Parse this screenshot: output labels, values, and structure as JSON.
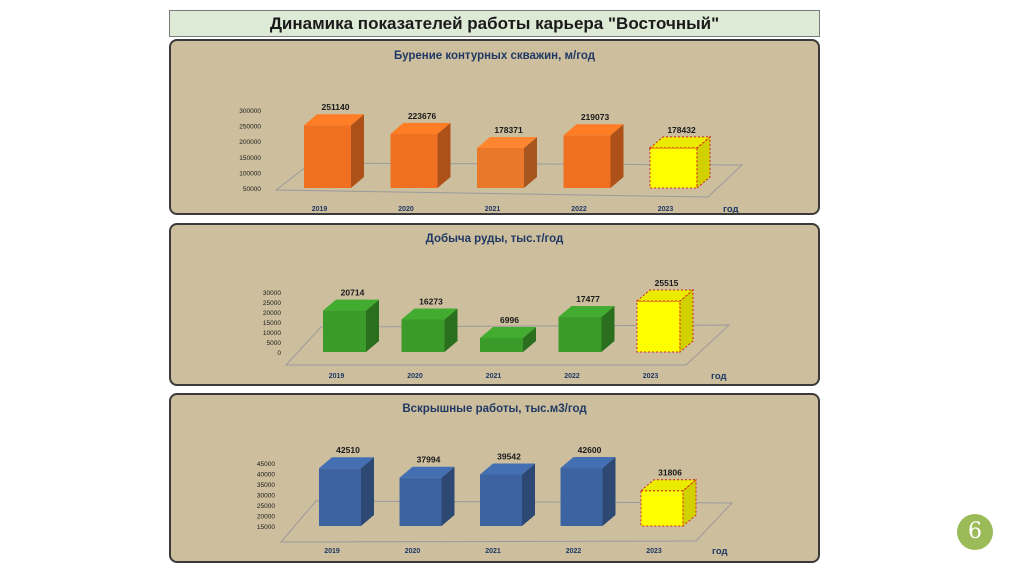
{
  "page": {
    "title": "Динамика показателей работы  карьера \"Восточный\"",
    "page_number": "6"
  },
  "chart_data": [
    {
      "type": "bar",
      "title": "Бурение контурных скважин, м/год",
      "xlabel": "год",
      "categories": [
        "2019",
        "2020",
        "2021",
        "2022",
        "2023"
      ],
      "values": [
        251140,
        223676,
        178371,
        219073,
        178432
      ],
      "yticks": [
        50000,
        100000,
        150000,
        200000,
        250000,
        300000
      ],
      "ylim": [
        50000,
        300000
      ],
      "colors": [
        "#f07021",
        "#f07021",
        "#e9782b",
        "#f07021",
        "#ffff00"
      ],
      "grid": false,
      "legend": "none"
    },
    {
      "type": "bar",
      "title": "Добыча руды, тыс.т/год",
      "xlabel": "год",
      "categories": [
        "2019",
        "2020",
        "2021",
        "2022",
        "2023"
      ],
      "values": [
        20714,
        16273,
        6996,
        17477,
        25515
      ],
      "yticks": [
        0,
        5000,
        10000,
        15000,
        20000,
        25000,
        30000
      ],
      "ylim": [
        0,
        30000
      ],
      "colors": [
        "#3a9a2a",
        "#3a9a2a",
        "#3a9a2a",
        "#3a9a2a",
        "#ffff00"
      ],
      "grid": false,
      "legend": "none"
    },
    {
      "type": "bar",
      "title": "Вскрышные работы, тыс.м3/год",
      "xlabel": "год",
      "categories": [
        "2019",
        "2020",
        "2021",
        "2022",
        "2023"
      ],
      "values": [
        42510,
        37994,
        39542,
        42600,
        31806
      ],
      "yticks": [
        15000,
        20000,
        25000,
        30000,
        35000,
        40000,
        45000
      ],
      "ylim": [
        15000,
        45000
      ],
      "colors": [
        "#3d64a0",
        "#3d64a0",
        "#3d64a0",
        "#3d64a0",
        "#ffff00"
      ],
      "grid": false,
      "legend": "none"
    }
  ]
}
